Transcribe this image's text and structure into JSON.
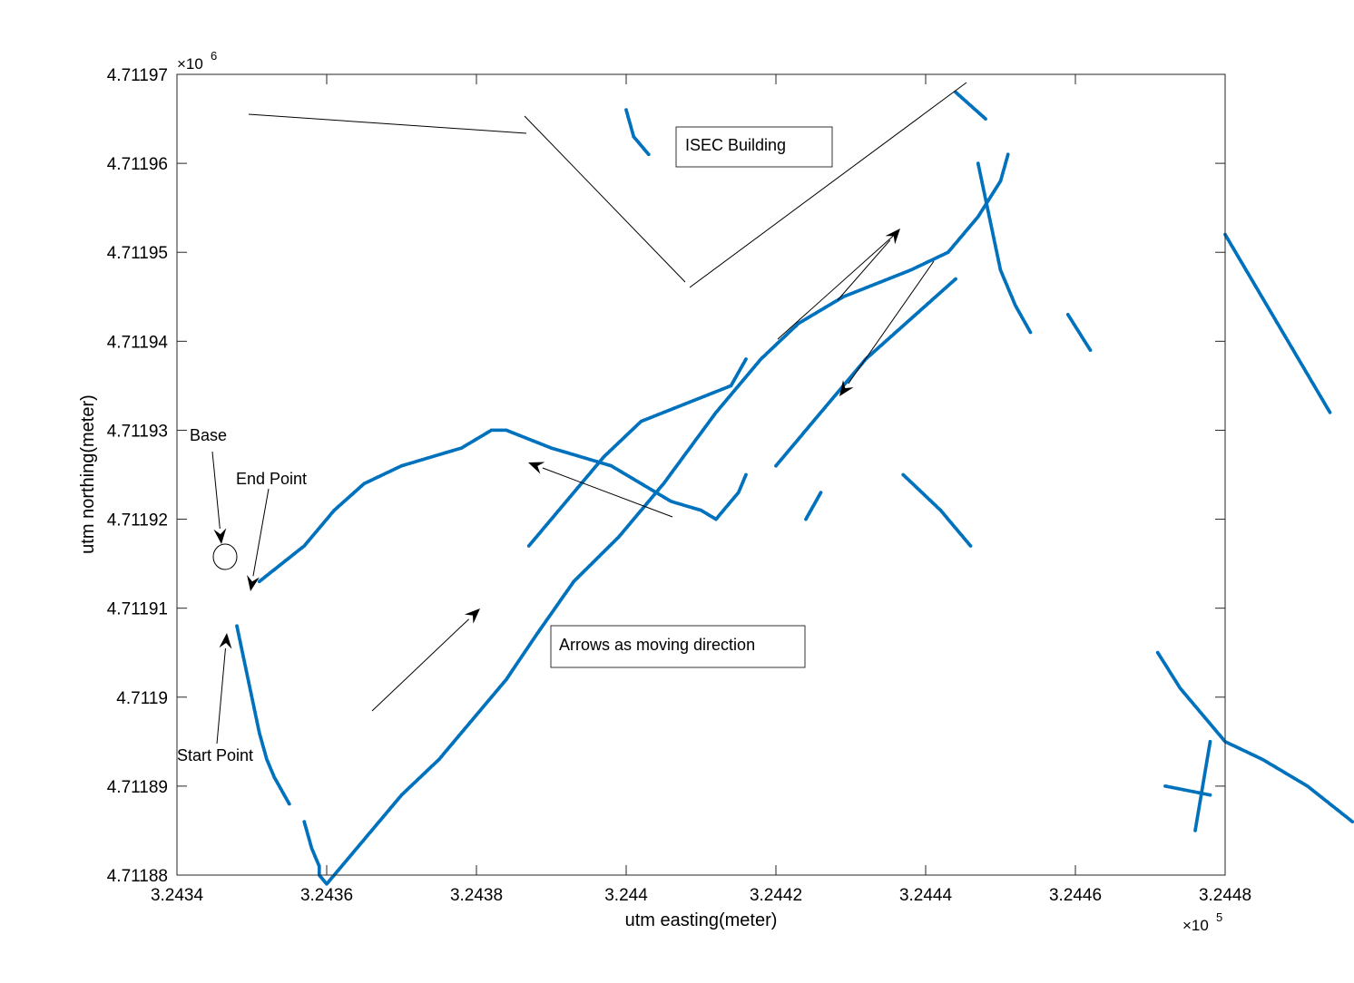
{
  "chart_data": {
    "type": "scatter",
    "xlabel": "utm easting(meter)",
    "ylabel": "utm northing(meter)",
    "x_multiplier_label": "×10",
    "x_multiplier_exp": "5",
    "y_multiplier_label": "×10",
    "y_multiplier_exp": "6",
    "xlim": [
      3.2434,
      3.2448
    ],
    "ylim": [
      4.71188,
      4.71197
    ],
    "x_ticks": [
      {
        "value": 3.2434,
        "label": "3.2434"
      },
      {
        "value": 3.2436,
        "label": "3.2436"
      },
      {
        "value": 3.2438,
        "label": "3.2438"
      },
      {
        "value": 3.244,
        "label": "3.244"
      },
      {
        "value": 3.2442,
        "label": "3.2442"
      },
      {
        "value": 3.2444,
        "label": "3.2444"
      },
      {
        "value": 3.2446,
        "label": "3.2446"
      },
      {
        "value": 3.2448,
        "label": "3.2448"
      }
    ],
    "y_ticks": [
      {
        "value": 4.71188,
        "label": "4.71188"
      },
      {
        "value": 4.71189,
        "label": "4.71189"
      },
      {
        "value": 4.7119,
        "label": "4.7119"
      },
      {
        "value": 4.71191,
        "label": "4.71191"
      },
      {
        "value": 4.71192,
        "label": "4.71192"
      },
      {
        "value": 4.71193,
        "label": "4.71193"
      },
      {
        "value": 4.71194,
        "label": "4.71194"
      },
      {
        "value": 4.71195,
        "label": "4.71195"
      },
      {
        "value": 4.71196,
        "label": "4.71196"
      },
      {
        "value": 4.71197,
        "label": "4.71197"
      }
    ],
    "grid": false,
    "marker_color": "#0072BD",
    "tracks": [
      [
        [
          3.24348,
          4.711908
        ],
        [
          3.24349,
          4.711904
        ],
        [
          3.2435,
          4.7119
        ],
        [
          3.24351,
          4.711896
        ],
        [
          3.24352,
          4.711893
        ],
        [
          3.24353,
          4.711891
        ],
        [
          3.24355,
          4.711888
        ]
      ],
      [
        [
          3.24357,
          4.711886
        ],
        [
          3.24358,
          4.711883
        ],
        [
          3.24359,
          4.711881
        ],
        [
          3.24359,
          4.71188
        ],
        [
          3.2436,
          4.711879
        ],
        [
          3.24362,
          4.711881
        ],
        [
          3.24365,
          4.711884
        ],
        [
          3.2437,
          4.711889
        ],
        [
          3.24375,
          4.711893
        ],
        [
          3.24379,
          4.711897
        ],
        [
          3.24384,
          4.711902
        ],
        [
          3.24388,
          4.711907
        ],
        [
          3.24393,
          4.711913
        ],
        [
          3.24399,
          4.711918
        ],
        [
          3.24405,
          4.711924
        ],
        [
          3.24412,
          4.711932
        ],
        [
          3.24418,
          4.711938
        ],
        [
          3.24423,
          4.711942
        ],
        [
          3.24429,
          4.711945
        ],
        [
          3.24438,
          4.711948
        ],
        [
          3.24443,
          4.71195
        ],
        [
          3.24447,
          4.711954
        ],
        [
          3.2445,
          4.711958
        ],
        [
          3.24451,
          4.711961
        ]
      ],
      [
        [
          3.24351,
          4.711913
        ],
        [
          3.24354,
          4.711915
        ],
        [
          3.24357,
          4.711917
        ],
        [
          3.24361,
          4.711921
        ],
        [
          3.24365,
          4.711924
        ],
        [
          3.2437,
          4.711926
        ],
        [
          3.24374,
          4.711927
        ],
        [
          3.24378,
          4.711928
        ],
        [
          3.24382,
          4.71193
        ],
        [
          3.24384,
          4.71193
        ],
        [
          3.24387,
          4.711929
        ],
        [
          3.2439,
          4.711928
        ],
        [
          3.24394,
          4.711927
        ],
        [
          3.24398,
          4.711926
        ],
        [
          3.24402,
          4.711924
        ],
        [
          3.24406,
          4.711922
        ],
        [
          3.2441,
          4.711921
        ],
        [
          3.24412,
          4.71192
        ],
        [
          3.24413,
          4.711921
        ],
        [
          3.24415,
          4.711923
        ],
        [
          3.24416,
          4.711925
        ]
      ],
      [
        [
          3.24387,
          4.711917
        ],
        [
          3.24392,
          4.711922
        ],
        [
          3.24397,
          4.711927
        ],
        [
          3.24402,
          4.711931
        ],
        [
          3.24408,
          4.711933
        ],
        [
          3.24414,
          4.711935
        ],
        [
          3.24416,
          4.711938
        ]
      ],
      [
        [
          3.2442,
          4.711926
        ],
        [
          3.24424,
          4.71193
        ],
        [
          3.24428,
          4.711934
        ],
        [
          3.24432,
          4.711938
        ],
        [
          3.24436,
          4.711941
        ],
        [
          3.2444,
          4.711944
        ],
        [
          3.24444,
          4.711947
        ]
      ],
      [
        [
          3.24447,
          4.71196
        ],
        [
          3.24448,
          4.711956
        ],
        [
          3.24449,
          4.711952
        ],
        [
          3.2445,
          4.711948
        ],
        [
          3.24452,
          4.711944
        ],
        [
          3.24454,
          4.711941
        ]
      ],
      [
        [
          3.244,
          4.711966
        ],
        [
          3.24401,
          4.711963
        ],
        [
          3.24403,
          4.711961
        ]
      ],
      [
        [
          3.24471,
          4.711905
        ],
        [
          3.24474,
          4.711901
        ],
        [
          3.24477,
          4.711898
        ],
        [
          3.2448,
          4.711895
        ],
        [
          3.24485,
          4.711893
        ],
        [
          3.24491,
          4.71189
        ],
        [
          3.24497,
          4.711886
        ]
      ],
      [
        [
          3.24472,
          4.71189
        ],
        [
          3.24478,
          4.711889
        ]
      ],
      [
        [
          3.24476,
          4.711885
        ],
        [
          3.24478,
          4.711895
        ]
      ],
      [
        [
          3.24437,
          4.711925
        ],
        [
          3.24442,
          4.711921
        ],
        [
          3.24446,
          4.711917
        ]
      ],
      [
        [
          3.24459,
          4.711943
        ],
        [
          3.24462,
          4.711939
        ]
      ],
      [
        [
          3.24424,
          4.71192
        ],
        [
          3.24426,
          4.711923
        ]
      ],
      [
        [
          3.24444,
          4.711968
        ],
        [
          3.24448,
          4.711965
        ]
      ],
      [
        [
          3.2448,
          4.711952
        ],
        [
          3.24494,
          4.711932
        ]
      ]
    ],
    "annotations": [
      {
        "text": "ISEC Building"
      },
      {
        "text": "Arrows as moving direction"
      },
      {
        "text": "Base"
      },
      {
        "text": "End Point"
      },
      {
        "text": "Start Point"
      }
    ]
  }
}
